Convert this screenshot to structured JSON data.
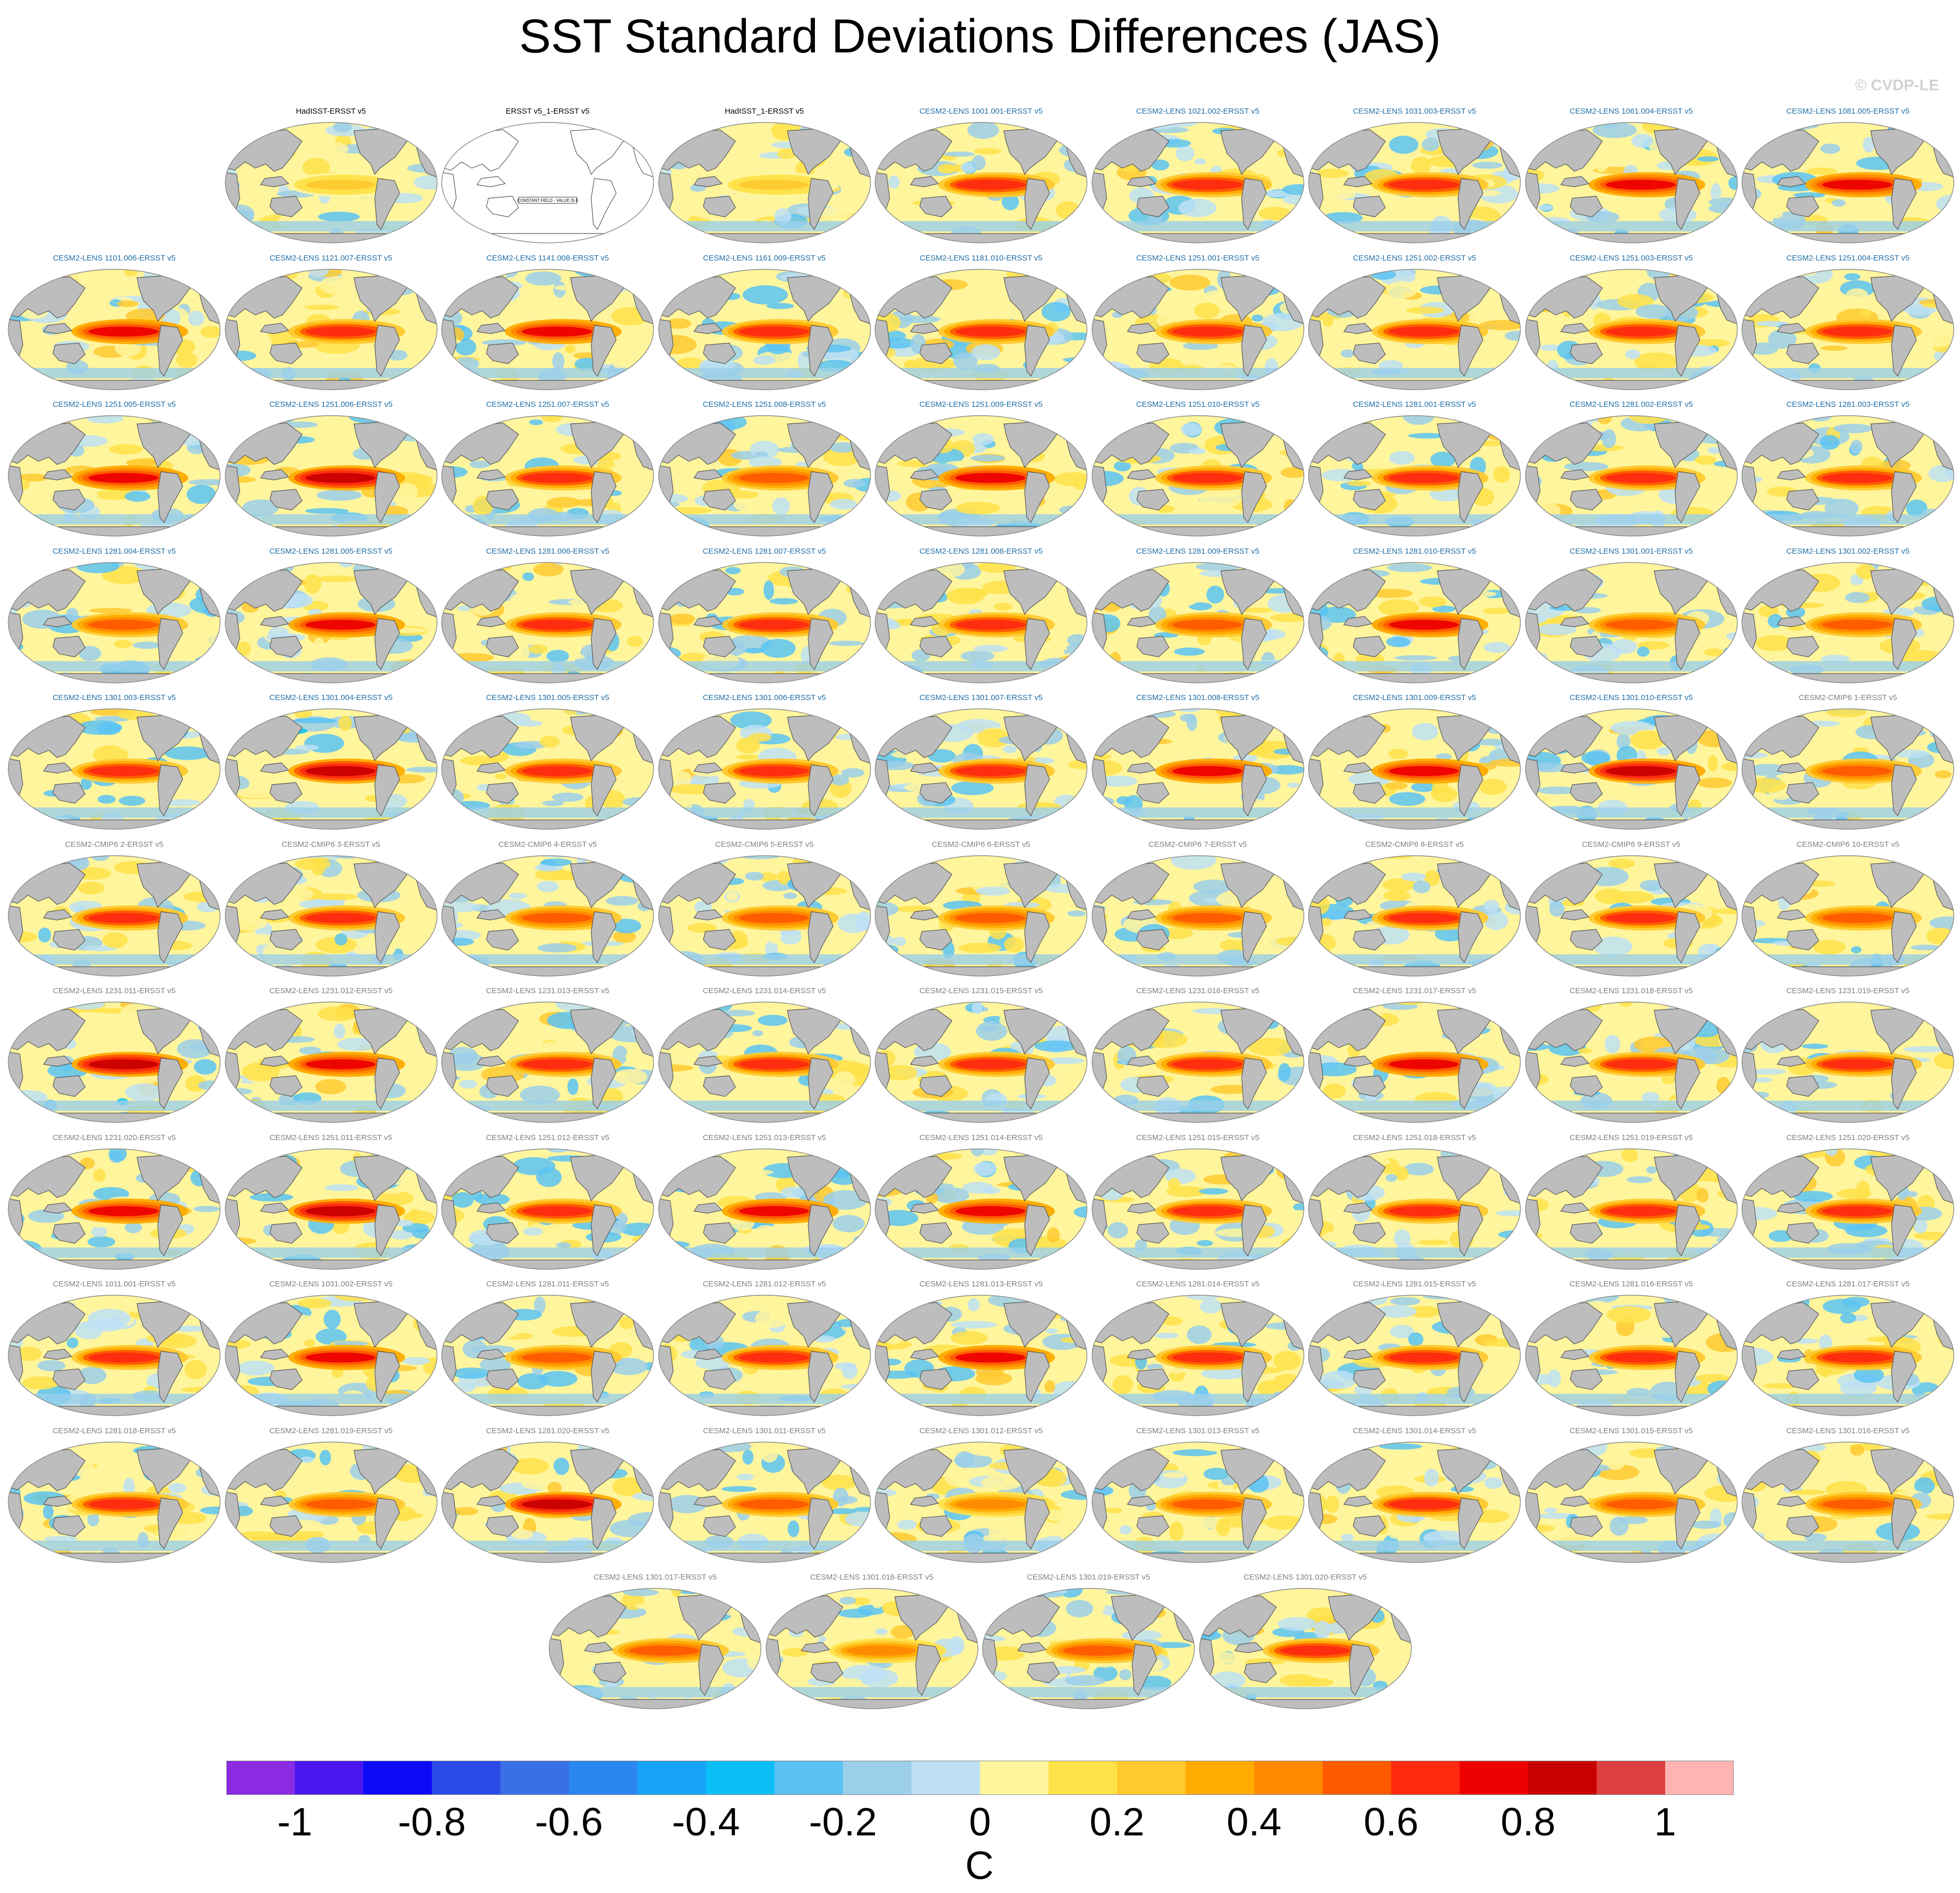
{
  "chart_data": {
    "type": "heatmap",
    "title": "SST Standard Deviations Differences (JAS)",
    "watermark": "© CVDP-LE",
    "colorbar": {
      "unit": "C",
      "range": [
        -1.1,
        1.1
      ],
      "step": 0.1,
      "tick_labels": [
        "-1",
        "-0.8",
        "-0.6",
        "-0.4",
        "-0.2",
        "0",
        "0.2",
        "0.4",
        "0.6",
        "0.8",
        "1"
      ],
      "colors": [
        "#8a2be2",
        "#4b17f0",
        "#0b0bf7",
        "#2b4be6",
        "#3a6fe8",
        "#2b86f0",
        "#17a3f6",
        "#09bff6",
        "#5ac3f3",
        "#9bcfea",
        "#bde0f5",
        "#fff59d",
        "#ffe24a",
        "#ffc930",
        "#ffab00",
        "#ff8a00",
        "#ff5a00",
        "#ff2a10",
        "#ee0000",
        "#c90000",
        "#dc4040",
        "#ffb3b3"
      ]
    },
    "panels": [
      {
        "label": "HadISST-ERSST v5",
        "group": "obs",
        "amp": 0.2
      },
      {
        "label": "ERSST v5_1-ERSST v5",
        "group": "obs",
        "amp": 0.0,
        "note": "CONSTANT FIELD - VALUE IS 0"
      },
      {
        "label": "HadISST_1-ERSST v5",
        "group": "obs",
        "amp": 0.2
      },
      {
        "label": "CESM2-LENS 1001.001-ERSST v5",
        "group": "lens",
        "amp": 0.6
      },
      {
        "label": "CESM2-LENS 1021.002-ERSST v5",
        "group": "lens",
        "amp": 0.6
      },
      {
        "label": "CESM2-LENS 1031.003-ERSST v5",
        "group": "lens",
        "amp": 0.6
      },
      {
        "label": "CESM2-LENS 1061.004-ERSST v5",
        "group": "lens",
        "amp": 0.7
      },
      {
        "label": "CESM2-LENS 1081.005-ERSST v5",
        "group": "lens",
        "amp": 0.7
      },
      {
        "label": "CESM2-LENS 1101.006-ERSST v5",
        "group": "lens",
        "amp": 0.7
      },
      {
        "label": "CESM2-LENS 1121.007-ERSST v5",
        "group": "lens",
        "amp": 0.6
      },
      {
        "label": "CESM2-LENS 1141.008-ERSST v5",
        "group": "lens",
        "amp": 0.7
      },
      {
        "label": "CESM2-LENS 1161.009-ERSST v5",
        "group": "lens",
        "amp": 0.6
      },
      {
        "label": "CESM2-LENS 1181.010-ERSST v5",
        "group": "lens",
        "amp": 0.6
      },
      {
        "label": "CESM2-LENS 1251.001-ERSST v5",
        "group": "lens",
        "amp": 0.6
      },
      {
        "label": "CESM2-LENS 1251.002-ERSST v5",
        "group": "lens",
        "amp": 0.6
      },
      {
        "label": "CESM2-LENS 1251.003-ERSST v5",
        "group": "lens",
        "amp": 0.6
      },
      {
        "label": "CESM2-LENS 1251.004-ERSST v5",
        "group": "lens",
        "amp": 0.6
      },
      {
        "label": "CESM2-LENS 1251.005-ERSST v5",
        "group": "lens",
        "amp": 0.7
      },
      {
        "label": "CESM2-LENS 1251.006-ERSST v5",
        "group": "lens",
        "amp": 0.8
      },
      {
        "label": "CESM2-LENS 1251.007-ERSST v5",
        "group": "lens",
        "amp": 0.6
      },
      {
        "label": "CESM2-LENS 1251.008-ERSST v5",
        "group": "lens",
        "amp": 0.5
      },
      {
        "label": "CESM2-LENS 1251.009-ERSST v5",
        "group": "lens",
        "amp": 0.7
      },
      {
        "label": "CESM2-LENS 1251.010-ERSST v5",
        "group": "lens",
        "amp": 0.6
      },
      {
        "label": "CESM2-LENS 1281.001-ERSST v5",
        "group": "lens",
        "amp": 0.6
      },
      {
        "label": "CESM2-LENS 1281.002-ERSST v5",
        "group": "lens",
        "amp": 0.6
      },
      {
        "label": "CESM2-LENS 1281.003-ERSST v5",
        "group": "lens",
        "amp": 0.6
      },
      {
        "label": "CESM2-LENS 1281.004-ERSST v5",
        "group": "lens",
        "amp": 0.5
      },
      {
        "label": "CESM2-LENS 1281.005-ERSST v5",
        "group": "lens",
        "amp": 0.7
      },
      {
        "label": "CESM2-LENS 1281.006-ERSST v5",
        "group": "lens",
        "amp": 0.6
      },
      {
        "label": "CESM2-LENS 1281.007-ERSST v5",
        "group": "lens",
        "amp": 0.6
      },
      {
        "label": "CESM2-LENS 1281.008-ERSST v5",
        "group": "lens",
        "amp": 0.6
      },
      {
        "label": "CESM2-LENS 1281.009-ERSST v5",
        "group": "lens",
        "amp": 0.5
      },
      {
        "label": "CESM2-LENS 1281.010-ERSST v5",
        "group": "lens",
        "amp": 0.7
      },
      {
        "label": "CESM2-LENS 1301.001-ERSST v5",
        "group": "lens",
        "amp": 0.5
      },
      {
        "label": "CESM2-LENS 1301.002-ERSST v5",
        "group": "lens",
        "amp": 0.5
      },
      {
        "label": "CESM2-LENS 1301.003-ERSST v5",
        "group": "lens",
        "amp": 0.6
      },
      {
        "label": "CESM2-LENS 1301.004-ERSST v5",
        "group": "lens",
        "amp": 0.8
      },
      {
        "label": "CESM2-LENS 1301.005-ERSST v5",
        "group": "lens",
        "amp": 0.6
      },
      {
        "label": "CESM2-LENS 1301.006-ERSST v5",
        "group": "lens",
        "amp": 0.6
      },
      {
        "label": "CESM2-LENS 1301.007-ERSST v5",
        "group": "lens",
        "amp": 0.6
      },
      {
        "label": "CESM2-LENS 1301.008-ERSST v5",
        "group": "lens",
        "amp": 0.7
      },
      {
        "label": "CESM2-LENS 1301.009-ERSST v5",
        "group": "lens",
        "amp": 0.7
      },
      {
        "label": "CESM2-LENS 1301.010-ERSST v5",
        "group": "lens",
        "amp": 0.8
      },
      {
        "label": "CESM2-CMIP6 1-ERSST v5",
        "group": "cmip",
        "amp": 0.5
      },
      {
        "label": "CESM2-CMIP6 2-ERSST v5",
        "group": "cmip",
        "amp": 0.6
      },
      {
        "label": "CESM2-CMIP6 3-ERSST v5",
        "group": "cmip",
        "amp": 0.6
      },
      {
        "label": "CESM2-CMIP6 4-ERSST v5",
        "group": "cmip",
        "amp": 0.5
      },
      {
        "label": "CESM2-CMIP6 5-ERSST v5",
        "group": "cmip",
        "amp": 0.5
      },
      {
        "label": "CESM2-CMIP6 6-ERSST v5",
        "group": "cmip",
        "amp": 0.5
      },
      {
        "label": "CESM2-CMIP6 7-ERSST v5",
        "group": "cmip",
        "amp": 0.5
      },
      {
        "label": "CESM2-CMIP6 8-ERSST v5",
        "group": "cmip",
        "amp": 0.6
      },
      {
        "label": "CESM2-CMIP6 9-ERSST v5",
        "group": "cmip",
        "amp": 0.6
      },
      {
        "label": "CESM2-CMIP6 10-ERSST v5",
        "group": "cmip",
        "amp": 0.5
      },
      {
        "label": "CESM2-LENS 1231.011-ERSST v5",
        "group": "cmip",
        "amp": 0.8
      },
      {
        "label": "CESM2-LENS 1231.012-ERSST v5",
        "group": "cmip",
        "amp": 0.7
      },
      {
        "label": "CESM2-LENS 1231.013-ERSST v5",
        "group": "cmip",
        "amp": 0.6
      },
      {
        "label": "CESM2-LENS 1231.014-ERSST v5",
        "group": "cmip",
        "amp": 0.6
      },
      {
        "label": "CESM2-LENS 1231.015-ERSST v5",
        "group": "cmip",
        "amp": 0.6
      },
      {
        "label": "CESM2-LENS 1231.016-ERSST v5",
        "group": "cmip",
        "amp": 0.6
      },
      {
        "label": "CESM2-LENS 1231.017-ERSST v5",
        "group": "cmip",
        "amp": 0.7
      },
      {
        "label": "CESM2-LENS 1231.018-ERSST v5",
        "group": "cmip",
        "amp": 0.6
      },
      {
        "label": "CESM2-LENS 1231.019-ERSST v5",
        "group": "cmip",
        "amp": 0.6
      },
      {
        "label": "CESM2-LENS 1231.020-ERSST v5",
        "group": "cmip",
        "amp": 0.7
      },
      {
        "label": "CESM2-LENS 1251.011-ERSST v5",
        "group": "cmip",
        "amp": 0.8
      },
      {
        "label": "CESM2-LENS 1251.012-ERSST v5",
        "group": "cmip",
        "amp": 0.6
      },
      {
        "label": "CESM2-LENS 1251.013-ERSST v5",
        "group": "cmip",
        "amp": 0.7
      },
      {
        "label": "CESM2-LENS 1251.014-ERSST v5",
        "group": "cmip",
        "amp": 0.7
      },
      {
        "label": "CESM2-LENS 1251.015-ERSST v5",
        "group": "cmip",
        "amp": 0.6
      },
      {
        "label": "CESM2-LENS 1251.018-ERSST v5",
        "group": "cmip",
        "amp": 0.6
      },
      {
        "label": "CESM2-LENS 1251.019-ERSST v5",
        "group": "cmip",
        "amp": 0.6
      },
      {
        "label": "CESM2-LENS 1251.020-ERSST v5",
        "group": "cmip",
        "amp": 0.6
      },
      {
        "label": "CESM2-LENS 1011.001-ERSST v5",
        "group": "cmip",
        "amp": 0.6
      },
      {
        "label": "CESM2-LENS 1031.002-ERSST v5",
        "group": "cmip",
        "amp": 0.7
      },
      {
        "label": "CESM2-LENS 1281.011-ERSST v5",
        "group": "cmip",
        "amp": 0.5
      },
      {
        "label": "CESM2-LENS 1281.012-ERSST v5",
        "group": "cmip",
        "amp": 0.6
      },
      {
        "label": "CESM2-LENS 1281.013-ERSST v5",
        "group": "cmip",
        "amp": 0.7
      },
      {
        "label": "CESM2-LENS 1281.014-ERSST v5",
        "group": "cmip",
        "amp": 0.6
      },
      {
        "label": "CESM2-LENS 1281.015-ERSST v5",
        "group": "cmip",
        "amp": 0.6
      },
      {
        "label": "CESM2-LENS 1281.016-ERSST v5",
        "group": "cmip",
        "amp": 0.6
      },
      {
        "label": "CESM2-LENS 1281.017-ERSST v5",
        "group": "cmip",
        "amp": 0.6
      },
      {
        "label": "CESM2-LENS 1281.018-ERSST v5",
        "group": "cmip",
        "amp": 0.6
      },
      {
        "label": "CESM2-LENS 1281.019-ERSST v5",
        "group": "cmip",
        "amp": 0.5
      },
      {
        "label": "CESM2-LENS 1281.020-ERSST v5",
        "group": "cmip",
        "amp": 0.8
      },
      {
        "label": "CESM2-LENS 1301.011-ERSST v5",
        "group": "cmip",
        "amp": 0.5
      },
      {
        "label": "CESM2-LENS 1301.012-ERSST v5",
        "group": "cmip",
        "amp": 0.4
      },
      {
        "label": "CESM2-LENS 1301.013-ERSST v5",
        "group": "cmip",
        "amp": 0.5
      },
      {
        "label": "CESM2-LENS 1301.014-ERSST v5",
        "group": "cmip",
        "amp": 0.6
      },
      {
        "label": "CESM2-LENS 1301.015-ERSST v5",
        "group": "cmip",
        "amp": 0.5
      },
      {
        "label": "CESM2-LENS 1301.016-ERSST v5",
        "group": "cmip",
        "amp": 0.5
      },
      {
        "label": "CESM2-LENS 1301.017-ERSST v5",
        "group": "cmip",
        "amp": 0.5
      },
      {
        "label": "CESM2-LENS 1301.018-ERSST v5",
        "group": "cmip",
        "amp": 0.4
      },
      {
        "label": "CESM2-LENS 1301.019-ERSST v5",
        "group": "cmip",
        "amp": 0.5
      },
      {
        "label": "CESM2-LENS 1301.020-ERSST v5",
        "group": "cmip",
        "amp": 0.6
      }
    ]
  }
}
